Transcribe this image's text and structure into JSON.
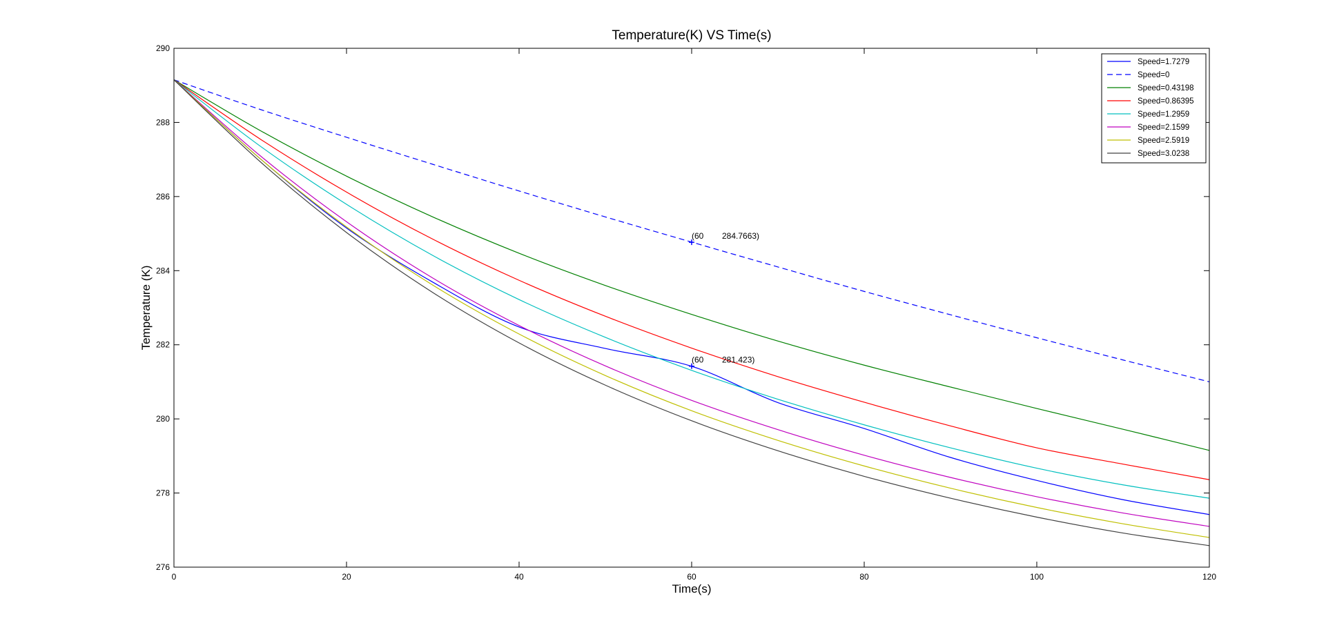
{
  "chart_data": {
    "type": "line",
    "title": "Temperature(K) VS Time(s)",
    "xlabel": "Time(s)",
    "ylabel": "Temperature (K)",
    "xlim": [
      0,
      120
    ],
    "ylim": [
      276,
      290
    ],
    "xticks": [
      0,
      20,
      40,
      60,
      80,
      100,
      120
    ],
    "yticks": [
      276,
      278,
      280,
      282,
      284,
      286,
      288,
      290
    ],
    "grid": false,
    "legend_position": "top-right",
    "x": [
      0,
      10,
      20,
      30,
      40,
      50,
      60,
      70,
      80,
      90,
      100,
      110,
      120
    ],
    "series": [
      {
        "name": "Speed=1.7279",
        "color": "#0000ff",
        "style": "solid",
        "values": [
          289.15,
          287.02,
          285.15,
          283.69,
          282.48,
          281.9,
          281.42,
          280.44,
          279.74,
          278.96,
          278.34,
          277.82,
          277.42
        ]
      },
      {
        "name": "Speed=0",
        "color": "#0000ff",
        "style": "dashed",
        "values": [
          289.15,
          288.35,
          287.6,
          286.87,
          286.15,
          285.45,
          284.77,
          284.1,
          283.44,
          282.81,
          282.19,
          281.59,
          281.0
        ]
      },
      {
        "name": "Speed=0.43198",
        "color": "#008000",
        "style": "solid",
        "values": [
          289.15,
          287.78,
          286.55,
          285.45,
          284.47,
          283.6,
          282.82,
          282.1,
          281.45,
          280.86,
          280.28,
          279.72,
          279.15
        ]
      },
      {
        "name": "Speed=0.86395",
        "color": "#ff0000",
        "style": "solid",
        "values": [
          289.15,
          287.55,
          286.12,
          284.85,
          283.74,
          282.77,
          281.91,
          281.14,
          280.45,
          279.81,
          279.22,
          278.78,
          278.36
        ]
      },
      {
        "name": "Speed=1.2959",
        "color": "#00bfbf",
        "style": "solid",
        "values": [
          289.15,
          287.36,
          285.79,
          284.41,
          283.22,
          282.2,
          281.31,
          280.53,
          279.84,
          279.22,
          278.67,
          278.22,
          277.86
        ]
      },
      {
        "name": "Speed=2.1599",
        "color": "#bf00bf",
        "style": "solid",
        "values": [
          289.15,
          287.1,
          285.32,
          283.8,
          282.52,
          281.43,
          280.5,
          279.71,
          279.02,
          278.42,
          277.9,
          277.46,
          277.1
        ]
      },
      {
        "name": "Speed=2.5919",
        "color": "#bfbf00",
        "style": "solid",
        "values": [
          289.15,
          287.02,
          285.18,
          283.61,
          282.29,
          281.17,
          280.22,
          279.42,
          278.73,
          278.13,
          277.61,
          277.17,
          276.8
        ]
      },
      {
        "name": "Speed=3.0238",
        "color": "#404040",
        "style": "solid",
        "values": [
          289.15,
          286.94,
          285.03,
          283.41,
          282.05,
          280.91,
          279.95,
          279.14,
          278.45,
          277.86,
          277.35,
          276.92,
          276.58
        ]
      }
    ],
    "annotations": [
      {
        "x": 60,
        "y": 284.7663,
        "text_x": "(60",
        "text_y": "284.7663)",
        "color": "#0000ff"
      },
      {
        "x": 60,
        "y": 281.423,
        "text_x": "(60",
        "text_y": "281.423)",
        "color": "#0000ff"
      }
    ]
  }
}
